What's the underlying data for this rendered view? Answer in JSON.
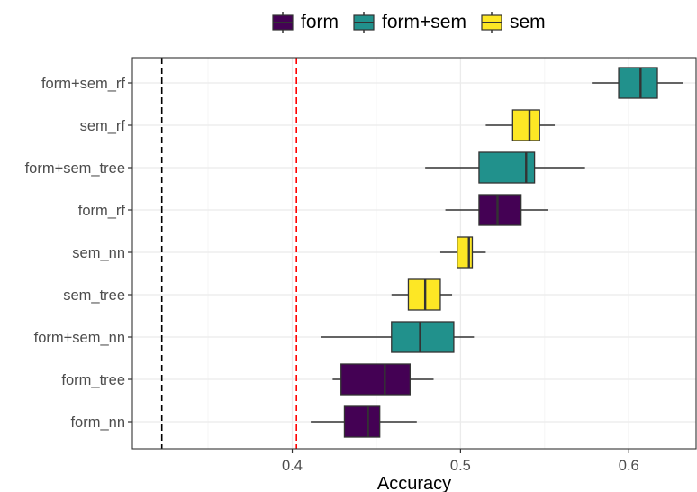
{
  "colors": {
    "form": "#440154",
    "form+sem": "#21918C",
    "sem": "#FDE725",
    "box_outline": "#333333",
    "reference_black": "#000000",
    "reference_red": "#FF0000",
    "grid_major": "#EBEBEB",
    "grid_minor": "#F5F5F5"
  },
  "legend": {
    "position": "top",
    "items": [
      {
        "label": "form",
        "fill": "#440154"
      },
      {
        "label": "form+sem",
        "fill": "#21918C"
      },
      {
        "label": "sem",
        "fill": "#FDE725"
      }
    ]
  },
  "chart_data": {
    "type": "boxplot",
    "orientation": "horizontal",
    "title": "",
    "xlabel": "Accuracy",
    "ylabel": "",
    "xlim": [
      0.305,
      0.64
    ],
    "x_ticks": [
      0.4,
      0.5,
      0.6
    ],
    "x_tick_labels": [
      "0.4",
      "0.5",
      "0.6"
    ],
    "grid": true,
    "reference_lines": [
      {
        "x": 0.3225,
        "style": "dashed",
        "color": "#000000"
      },
      {
        "x": 0.4025,
        "style": "dashed",
        "color": "#FF0000"
      }
    ],
    "categories": [
      "form+sem_rf",
      "sem_rf",
      "form+sem_tree",
      "form_rf",
      "sem_nn",
      "sem_tree",
      "form+sem_nn",
      "form_tree",
      "form_nn"
    ],
    "boxes": [
      {
        "label": "form+sem_rf",
        "group": "form+sem",
        "whisker_low": 0.578,
        "q1": 0.594,
        "median": 0.607,
        "q3": 0.617,
        "whisker_high": 0.632
      },
      {
        "label": "sem_rf",
        "group": "sem",
        "whisker_low": 0.515,
        "q1": 0.531,
        "median": 0.541,
        "q3": 0.547,
        "whisker_high": 0.556
      },
      {
        "label": "form+sem_tree",
        "group": "form+sem",
        "whisker_low": 0.479,
        "q1": 0.511,
        "median": 0.539,
        "q3": 0.544,
        "whisker_high": 0.574
      },
      {
        "label": "form_rf",
        "group": "form",
        "whisker_low": 0.491,
        "q1": 0.511,
        "median": 0.522,
        "q3": 0.536,
        "whisker_high": 0.552
      },
      {
        "label": "sem_nn",
        "group": "sem",
        "whisker_low": 0.488,
        "q1": 0.498,
        "median": 0.505,
        "q3": 0.507,
        "whisker_high": 0.515
      },
      {
        "label": "sem_tree",
        "group": "sem",
        "whisker_low": 0.459,
        "q1": 0.469,
        "median": 0.479,
        "q3": 0.488,
        "whisker_high": 0.495
      },
      {
        "label": "form+sem_nn",
        "group": "form+sem",
        "whisker_low": 0.417,
        "q1": 0.459,
        "median": 0.476,
        "q3": 0.496,
        "whisker_high": 0.508
      },
      {
        "label": "form_tree",
        "group": "form",
        "whisker_low": 0.424,
        "q1": 0.429,
        "median": 0.455,
        "q3": 0.47,
        "whisker_high": 0.484
      },
      {
        "label": "form_nn",
        "group": "form",
        "whisker_low": 0.411,
        "q1": 0.431,
        "median": 0.445,
        "q3": 0.452,
        "whisker_high": 0.474
      }
    ]
  }
}
